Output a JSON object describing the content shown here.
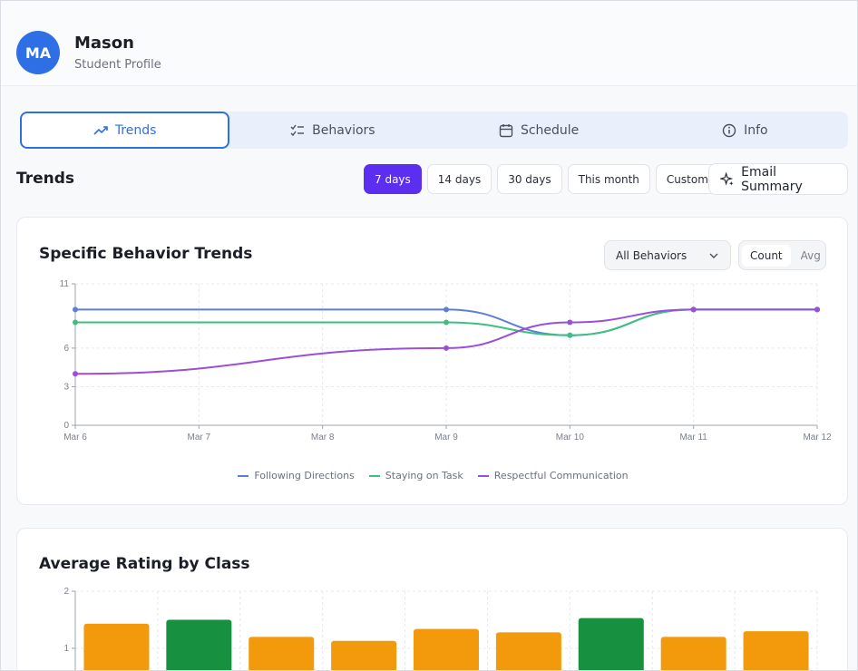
{
  "profile": {
    "initials": "MA",
    "name": "Mason",
    "subtitle": "Student Profile"
  },
  "tabs": [
    {
      "label": "Trends",
      "icon": "trending-up-icon",
      "active": true
    },
    {
      "label": "Behaviors",
      "icon": "checklist-icon",
      "active": false
    },
    {
      "label": "Schedule",
      "icon": "calendar-icon",
      "active": false
    },
    {
      "label": "Info",
      "icon": "info-icon",
      "active": false
    }
  ],
  "section_title": "Trends",
  "range_buttons": [
    {
      "label": "7 days",
      "active": true
    },
    {
      "label": "14 days",
      "active": false
    },
    {
      "label": "30 days",
      "active": false
    },
    {
      "label": "This month",
      "active": false
    },
    {
      "label": "Custom",
      "active": false
    }
  ],
  "email_summary_label": "Email Summary",
  "colors": {
    "accent": "#5b2ef0",
    "tab_active": "#2f6fe6",
    "following_directions": "#5b7fd9",
    "staying_on_task": "#3fbf7f",
    "respectful_communication": "#9b4fd8",
    "bar_orange": "#f29a0b",
    "bar_green": "#179140"
  },
  "behavior_trends": {
    "title": "Specific Behavior Trends",
    "filter_value": "All Behaviors",
    "toggle": {
      "count": "Count",
      "avg": "Avg",
      "active": "count"
    }
  },
  "average_rating": {
    "title": "Average Rating by Class"
  },
  "chart_data": [
    {
      "type": "line",
      "title": "Specific Behavior Trends",
      "x": [
        "Mar 6",
        "Mar 7",
        "Mar 8",
        "Mar 9",
        "Mar 10",
        "Mar 11",
        "Mar 12"
      ],
      "ylim": [
        0,
        11
      ],
      "yticks": [
        "0",
        "3",
        "6",
        "11"
      ],
      "grid": true,
      "legend_position": "bottom",
      "series": [
        {
          "name": "Following Directions",
          "color": "#5b7fd9",
          "points": [
            [
              "Mar 6",
              9
            ],
            [
              "Mar 9",
              9
            ],
            [
              "Mar 10",
              7
            ],
            [
              "Mar 11",
              9
            ],
            [
              "Mar 12",
              9
            ]
          ]
        },
        {
          "name": "Staying on Task",
          "color": "#3fbf7f",
          "points": [
            [
              "Mar 6",
              8
            ],
            [
              "Mar 9",
              8
            ],
            [
              "Mar 10",
              7
            ],
            [
              "Mar 11",
              9
            ],
            [
              "Mar 12",
              9
            ]
          ]
        },
        {
          "name": "Respectful Communication",
          "color": "#9b4fd8",
          "points": [
            [
              "Mar 6",
              4
            ],
            [
              "Mar 9",
              6
            ],
            [
              "Mar 10",
              8
            ],
            [
              "Mar 11",
              9
            ],
            [
              "Mar 12",
              9
            ]
          ]
        }
      ]
    },
    {
      "type": "bar",
      "title": "Average Rating by Class",
      "ylim": [
        0,
        2
      ],
      "yticks": [
        "1",
        "2"
      ],
      "grid": true,
      "values": [
        1.43,
        1.5,
        1.2,
        1.13,
        1.34,
        1.28,
        1.53,
        1.2,
        1.3
      ],
      "colors": [
        "#f29a0b",
        "#179140",
        "#f29a0b",
        "#f29a0b",
        "#f29a0b",
        "#f29a0b",
        "#179140",
        "#f29a0b",
        "#f29a0b"
      ]
    }
  ]
}
